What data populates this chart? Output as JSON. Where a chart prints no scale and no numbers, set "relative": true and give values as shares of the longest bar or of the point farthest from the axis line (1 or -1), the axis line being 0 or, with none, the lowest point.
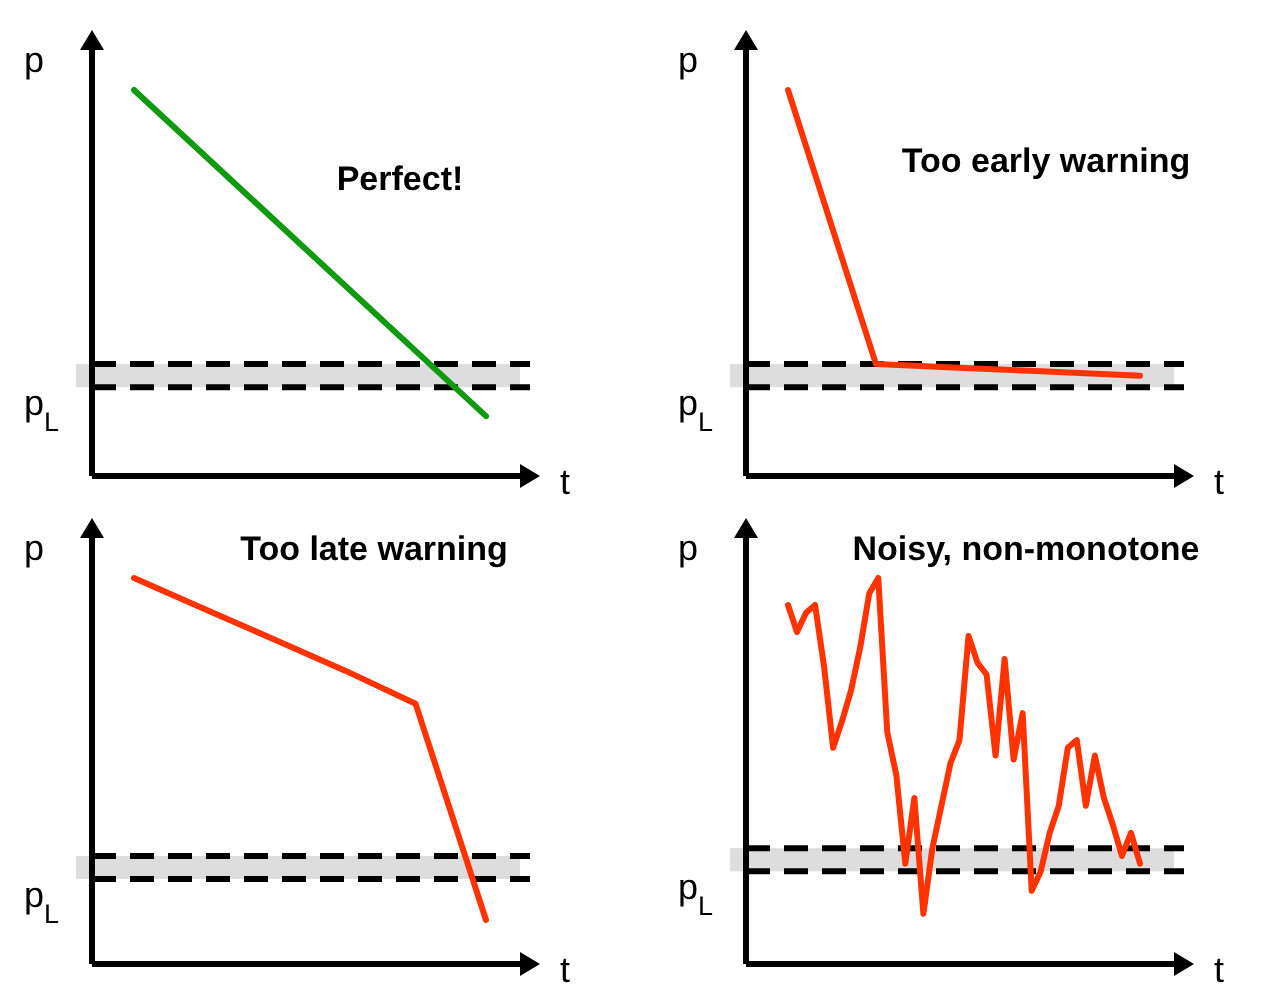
{
  "chart_data": [
    {
      "type": "line",
      "title": "Perfect!",
      "xlabel": "t",
      "ylabel": "p",
      "relative": true,
      "categories": [
        null,
        null
      ],
      "series": [
        {
          "color": "#119911",
          "values": [
            1,
            0.155
          ]
        }
      ],
      "bands": [
        {
          "axis": "y",
          "from": 0.23,
          "to": 0.29,
          "label": "p$_{L}$",
          "color": "#dddddd"
        }
      ],
      "ref_lines": [
        {
          "axis": "y",
          "value": 0.29,
          "color": "#000000",
          "line_style": "dashed"
        },
        {
          "axis": "y",
          "value": 0.23,
          "color": "#000000",
          "line_style": "dashed"
        }
      ]
    },
    {
      "type": "line",
      "title": "Too early warning",
      "xlabel": "t",
      "ylabel": "p",
      "relative": true,
      "categories": [
        null,
        null,
        null,
        null,
        null
      ],
      "series": [
        {
          "color": "#ff3300",
          "values": [
            1,
            0.29,
            0.28,
            0.27,
            0.26
          ]
        }
      ],
      "bands": [
        {
          "axis": "y",
          "from": 0.23,
          "to": 0.29,
          "label": "p$_{L}$",
          "color": "#dddddd"
        }
      ],
      "ref_lines": [
        {
          "axis": "y",
          "value": 0.29,
          "color": "#000000",
          "line_style": "dashed"
        },
        {
          "axis": "y",
          "value": 0.23,
          "color": "#000000",
          "line_style": "dashed"
        }
      ]
    },
    {
      "type": "line",
      "title": "Too late warning",
      "xlabel": "t",
      "ylabel": "p",
      "relative": true,
      "categories": [
        null,
        null,
        null,
        null,
        null,
        null
      ],
      "series": [
        {
          "color": "#ff3300",
          "values": [
            1,
            0.92,
            0.84,
            0.76,
            0.674,
            0.114
          ]
        }
      ],
      "bands": [
        {
          "axis": "y",
          "from": 0.22,
          "to": 0.28,
          "label": "p$_{L}$",
          "color": "#dddddd"
        }
      ],
      "ref_lines": [
        {
          "axis": "y",
          "value": 0.28,
          "color": "#000000",
          "line_style": "dashed"
        },
        {
          "axis": "y",
          "value": 0.22,
          "color": "#000000",
          "line_style": "dashed"
        }
      ]
    },
    {
      "type": "line",
      "title": "Noisy, non-monotone",
      "xlabel": "t",
      "ylabel": "p",
      "relative": true,
      "categories": [
        null,
        null,
        null,
        null,
        null,
        null,
        null,
        null,
        null,
        null,
        null,
        null,
        null,
        null,
        null,
        null,
        null,
        null,
        null,
        null,
        null,
        null,
        null,
        null,
        null,
        null,
        null,
        null,
        null,
        null,
        null,
        null,
        null,
        null,
        null,
        null,
        null,
        null,
        null,
        null
      ],
      "series": [
        {
          "color": "#ff3300",
          "values": [
            0.93,
            0.86,
            0.91,
            0.93,
            0.77,
            0.56,
            0.63,
            0.71,
            0.82,
            0.96,
            1,
            0.6,
            0.49,
            0.26,
            0.43,
            0.13,
            0.3,
            0.41,
            0.52,
            0.58,
            0.85,
            0.78,
            0.75,
            0.54,
            0.79,
            0.53,
            0.65,
            0.19,
            0.24,
            0.34,
            0.41,
            0.56,
            0.58,
            0.41,
            0.54,
            0.43,
            0.36,
            0.28,
            0.34,
            0.26
          ]
        }
      ],
      "bands": [
        {
          "axis": "y",
          "from": 0.24,
          "to": 0.3,
          "label": "p$_{L}$",
          "color": "#dddddd"
        }
      ],
      "ref_lines": [
        {
          "axis": "y",
          "value": 0.3,
          "color": "#000000",
          "line_style": "dashed"
        },
        {
          "axis": "y",
          "value": 0.24,
          "color": "#000000",
          "line_style": "dashed"
        }
      ]
    }
  ]
}
